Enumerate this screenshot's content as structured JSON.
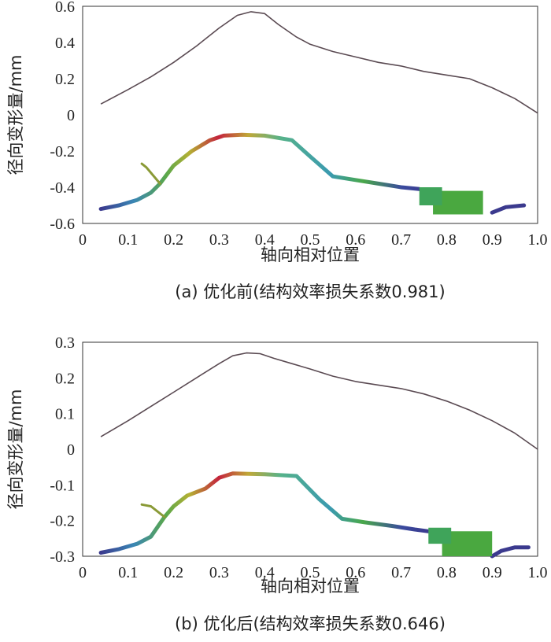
{
  "chart_data": [
    {
      "type": "line",
      "caption": "(a) 优化前(结构效率损失系数0.981)",
      "xlabel": "轴向相对位置",
      "ylabel": "径向变形量/mm",
      "xlim": [
        0,
        1.0
      ],
      "ylim": [
        -0.6,
        0.6
      ],
      "x_ticks": [
        "0",
        "0.1",
        "0.2",
        "0.3",
        "0.4",
        "0.5",
        "0.6",
        "0.7",
        "0.8",
        "0.9",
        "1.0"
      ],
      "y_ticks": [
        "0.6",
        "0.4",
        "0.2",
        "0",
        "-0.2",
        "-0.4",
        "-0.6"
      ],
      "series": [
        {
          "x": [
            0.04,
            0.1,
            0.15,
            0.2,
            0.25,
            0.3,
            0.34,
            0.37,
            0.4,
            0.43,
            0.47,
            0.5,
            0.55,
            0.6,
            0.65,
            0.7,
            0.75,
            0.8,
            0.85,
            0.9,
            0.95,
            1.0
          ],
          "y": [
            0.06,
            0.14,
            0.21,
            0.29,
            0.38,
            0.48,
            0.55,
            0.57,
            0.56,
            0.5,
            0.43,
            0.39,
            0.35,
            0.32,
            0.29,
            0.27,
            0.24,
            0.22,
            0.2,
            0.15,
            0.09,
            0.01
          ]
        }
      ],
      "deformed_shape": {
        "main": [
          [
            0.04,
            -0.52
          ],
          [
            0.08,
            -0.5
          ],
          [
            0.12,
            -0.47
          ],
          [
            0.15,
            -0.43
          ],
          [
            0.17,
            -0.38
          ],
          [
            0.2,
            -0.28
          ],
          [
            0.24,
            -0.2
          ],
          [
            0.28,
            -0.14
          ],
          [
            0.31,
            -0.115
          ],
          [
            0.35,
            -0.11
          ],
          [
            0.4,
            -0.115
          ],
          [
            0.46,
            -0.14
          ],
          [
            0.5,
            -0.23
          ],
          [
            0.55,
            -0.34
          ],
          [
            0.6,
            -0.36
          ],
          [
            0.65,
            -0.38
          ],
          [
            0.7,
            -0.4
          ],
          [
            0.74,
            -0.41
          ],
          [
            0.76,
            -0.42
          ]
        ],
        "branch": [
          [
            0.17,
            -0.38
          ],
          [
            0.14,
            -0.29
          ],
          [
            0.13,
            -0.27
          ]
        ],
        "tail": [
          [
            0.9,
            -0.54
          ],
          [
            0.93,
            -0.51
          ],
          [
            0.97,
            -0.5
          ]
        ],
        "block": {
          "x": [
            0.77,
            0.88
          ],
          "y": [
            -0.55,
            -0.42
          ]
        },
        "block_step": {
          "x": [
            0.74,
            0.79
          ],
          "y": [
            -0.5,
            -0.4
          ]
        }
      }
    },
    {
      "type": "line",
      "caption": "(b) 优化后(结构效率损失系数0.646)",
      "xlabel": "轴向相对位置",
      "ylabel": "径向变形量/mm",
      "xlim": [
        0,
        1.0
      ],
      "ylim": [
        -0.3,
        0.3
      ],
      "x_ticks": [
        "0",
        "0.1",
        "0.2",
        "0.3",
        "0.4",
        "0.5",
        "0.6",
        "0.7",
        "0.8",
        "0.9",
        "1.0"
      ],
      "y_ticks": [
        "0.3",
        "0.2",
        "0.1",
        "0",
        "-0.1",
        "-0.2",
        "-0.3"
      ],
      "series": [
        {
          "x": [
            0.04,
            0.1,
            0.15,
            0.2,
            0.25,
            0.3,
            0.33,
            0.36,
            0.39,
            0.42,
            0.46,
            0.5,
            0.55,
            0.6,
            0.65,
            0.7,
            0.75,
            0.8,
            0.85,
            0.9,
            0.95,
            1.0
          ],
          "y": [
            0.035,
            0.08,
            0.12,
            0.16,
            0.2,
            0.24,
            0.262,
            0.27,
            0.268,
            0.255,
            0.24,
            0.225,
            0.205,
            0.19,
            0.18,
            0.17,
            0.155,
            0.135,
            0.11,
            0.08,
            0.045,
            0.0
          ]
        }
      ],
      "deformed_shape": {
        "main": [
          [
            0.04,
            -0.29
          ],
          [
            0.08,
            -0.28
          ],
          [
            0.12,
            -0.265
          ],
          [
            0.15,
            -0.245
          ],
          [
            0.18,
            -0.19
          ],
          [
            0.2,
            -0.16
          ],
          [
            0.23,
            -0.13
          ],
          [
            0.27,
            -0.11
          ],
          [
            0.3,
            -0.08
          ],
          [
            0.33,
            -0.068
          ],
          [
            0.4,
            -0.07
          ],
          [
            0.47,
            -0.075
          ],
          [
            0.52,
            -0.14
          ],
          [
            0.57,
            -0.195
          ],
          [
            0.62,
            -0.205
          ],
          [
            0.68,
            -0.215
          ],
          [
            0.73,
            -0.225
          ],
          [
            0.76,
            -0.23
          ]
        ],
        "branch": [
          [
            0.18,
            -0.19
          ],
          [
            0.15,
            -0.16
          ],
          [
            0.13,
            -0.155
          ]
        ],
        "tail": [
          [
            0.9,
            -0.3
          ],
          [
            0.92,
            -0.285
          ],
          [
            0.95,
            -0.275
          ],
          [
            0.98,
            -0.275
          ]
        ],
        "block": {
          "x": [
            0.79,
            0.9
          ],
          "y": [
            -0.3,
            -0.23
          ]
        },
        "block_step": {
          "x": [
            0.76,
            0.81
          ],
          "y": [
            -0.265,
            -0.22
          ]
        }
      }
    }
  ]
}
